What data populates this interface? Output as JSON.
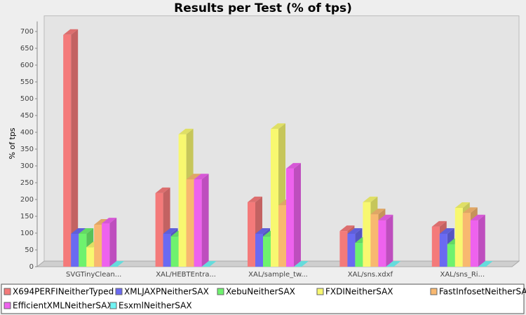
{
  "chart_data": {
    "type": "bar3d",
    "title": "Results per Test (% of tps)",
    "y_label": "% of tps",
    "categories": [
      "SVGTinyClean...",
      "XAL/HEBTEntra...",
      "XAL/sample_tw...",
      "XAL/sns.xdxf",
      "XAL/sns_Ri..."
    ],
    "series": [
      {
        "name": "X694PERFINeitherTyped",
        "color": "#f47a7a",
        "values": [
          690,
          219,
          192,
          106,
          119
        ]
      },
      {
        "name": "XMLJAXPNeitherSAX",
        "color": "#6a6af2",
        "values": [
          98,
          98,
          98,
          98,
          98
        ]
      },
      {
        "name": "XebuNeitherSAX",
        "color": "#6ef26e",
        "values": [
          98,
          90,
          90,
          71,
          67
        ]
      },
      {
        "name": "FXDINeitherSAX",
        "color": "#f8f870",
        "values": [
          58,
          394,
          410,
          192,
          175
        ]
      },
      {
        "name": "FastInfosetNeitherSAX",
        "color": "#f8b870",
        "values": [
          125,
          260,
          183,
          156,
          160
        ]
      },
      {
        "name": "EfficientXMLNeitherSAX",
        "color": "#ee62ee",
        "values": [
          129,
          260,
          292,
          138,
          138
        ]
      },
      {
        "name": "EsxmlNeitherSAX",
        "color": "#70f4f4",
        "values": [
          0,
          0,
          0,
          0,
          0
        ]
      }
    ],
    "ylim": [
      0,
      730
    ],
    "yticks": [
      0,
      50,
      100,
      150,
      200,
      250,
      300,
      350,
      400,
      450,
      500,
      550,
      600,
      650,
      700
    ]
  }
}
